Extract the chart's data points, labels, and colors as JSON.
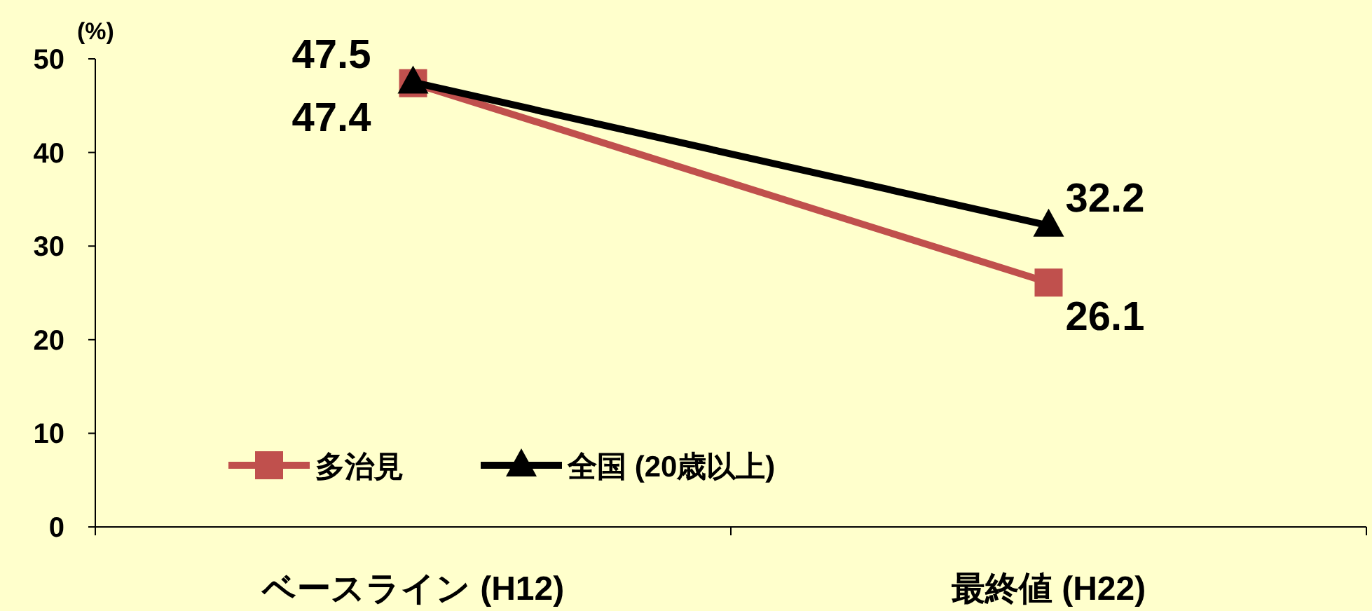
{
  "chart_data": {
    "type": "line",
    "ylabel": "(%)",
    "categories": [
      "ベースライン (H12)",
      "最終値 (H22)"
    ],
    "series": [
      {
        "name": "多治見",
        "color": "#c0504d",
        "marker": "square",
        "values": [
          47.4,
          26.1
        ]
      },
      {
        "name": "全国 (20歳以上)",
        "color": "#000000",
        "marker": "triangle",
        "values": [
          47.5,
          32.2
        ]
      }
    ],
    "ylim": [
      0,
      50
    ],
    "yticks": [
      0,
      10,
      20,
      30,
      40,
      50
    ],
    "data_labels": true,
    "legend": "bottom left",
    "grid": false
  }
}
